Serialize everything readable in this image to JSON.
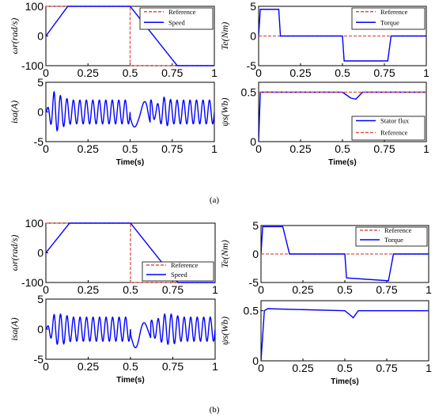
{
  "captions": [
    "(a)",
    "(b)"
  ],
  "colors": {
    "reference": "#d9534f",
    "signal": "#0000ff",
    "axes": "#000000"
  },
  "chart_data": [
    {
      "type": "line",
      "id": "a-speed",
      "ylabel": "ωr(rad/s)",
      "xlabel": "",
      "xlim": [
        0,
        1
      ],
      "ylim": [
        -100,
        100
      ],
      "xticks": [
        "0",
        "0.25",
        "0.5",
        "0.75",
        "1"
      ],
      "yticks": [
        "100",
        "0",
        "-100"
      ],
      "legend": {
        "position": "top-right",
        "entries": [
          "Reference",
          "Speed"
        ]
      },
      "series": [
        {
          "name": "Reference",
          "x": [
            0,
            0.5,
            0.5,
            1
          ],
          "y": [
            100,
            100,
            -100,
            -100
          ]
        },
        {
          "name": "Speed",
          "x": [
            0,
            0.13,
            0.5,
            0.78,
            1
          ],
          "y": [
            0,
            100,
            100,
            -100,
            -100
          ]
        }
      ]
    },
    {
      "type": "line",
      "id": "a-current",
      "ylabel": "isa(A)",
      "xlabel": "Time(s)",
      "xlim": [
        0,
        1
      ],
      "ylim": [
        -5,
        5
      ],
      "xticks": [
        "0",
        "0.25",
        "0.5",
        "0.75",
        "1"
      ],
      "yticks": [
        "5",
        "0",
        "-5"
      ],
      "series": [
        {
          "name": "",
          "x": [
            0,
            0.05,
            0.1,
            0.15,
            0.2,
            0.25,
            0.3,
            0.35,
            0.4,
            0.45,
            0.5,
            0.55,
            0.6,
            0.65,
            0.7,
            0.75,
            0.8,
            0.85,
            0.9,
            0.95,
            1
          ],
          "y": [
            0,
            3.5,
            2.5,
            2,
            2,
            2,
            2,
            2,
            2,
            2,
            2,
            1.5,
            3,
            1,
            2.5,
            2,
            2,
            2,
            2,
            2,
            2
          ]
        }
      ]
    },
    {
      "type": "line",
      "id": "a-torque",
      "ylabel": "Te(Nm)",
      "xlabel": "",
      "xlim": [
        0,
        1
      ],
      "ylim": [
        -5,
        5
      ],
      "xticks": [
        "0",
        "0.25",
        "0.5",
        "0.75",
        "1"
      ],
      "yticks": [
        "5",
        "0",
        "-5"
      ],
      "legend": {
        "position": "top-right",
        "entries": [
          "Reference",
          "Torque"
        ]
      },
      "series": [
        {
          "name": "Reference",
          "x": [
            0,
            1
          ],
          "y": [
            0,
            0
          ]
        },
        {
          "name": "Torque",
          "x": [
            0,
            0.01,
            0.12,
            0.13,
            0.5,
            0.51,
            0.77,
            0.79,
            1
          ],
          "y": [
            0,
            4.5,
            4.5,
            0,
            0,
            -4.2,
            -4.2,
            0,
            0
          ]
        }
      ]
    },
    {
      "type": "line",
      "id": "a-flux",
      "ylabel": "ψs(Wb)",
      "xlabel": "Time(s)",
      "xlim": [
        0,
        1
      ],
      "ylim": [
        0,
        0.6
      ],
      "xticks": [
        "0",
        "0.25",
        "0.5",
        "0.75",
        "1"
      ],
      "yticks": [
        "0.5",
        "0"
      ],
      "legend": {
        "position": "bottom-right",
        "entries": [
          "Stator flux",
          "Reference"
        ]
      },
      "series": [
        {
          "name": "Stator flux",
          "x": [
            0,
            0.01,
            0.5,
            0.55,
            0.58,
            0.62,
            1
          ],
          "y": [
            0,
            0.5,
            0.5,
            0.44,
            0.43,
            0.5,
            0.5
          ]
        },
        {
          "name": "Reference",
          "x": [
            0,
            1
          ],
          "y": [
            0.5,
            0.5
          ]
        }
      ]
    },
    {
      "type": "line",
      "id": "b-speed",
      "ylabel": "ωr(rad/s)",
      "xlabel": "",
      "xlim": [
        0,
        1
      ],
      "ylim": [
        -100,
        100
      ],
      "xticks": [
        "0",
        "0.25",
        "0.5",
        "0.75",
        "1"
      ],
      "yticks": [
        "100",
        "0",
        "-100"
      ],
      "legend": {
        "position": "bottom-right",
        "entries": [
          "Reference",
          "Speed"
        ]
      },
      "series": [
        {
          "name": "Reference",
          "x": [
            0,
            0.5,
            0.5,
            1
          ],
          "y": [
            100,
            100,
            -100,
            -100
          ]
        },
        {
          "name": "Speed",
          "x": [
            0,
            0.14,
            0.5,
            0.78,
            1
          ],
          "y": [
            0,
            100,
            100,
            -100,
            -100
          ]
        }
      ]
    },
    {
      "type": "line",
      "id": "b-current",
      "ylabel": "isa(A)",
      "xlabel": "Time(s)",
      "xlim": [
        0,
        1
      ],
      "ylim": [
        -5,
        5
      ],
      "xticks": [
        "0",
        "0.25",
        "0.5",
        "0.75",
        "1"
      ],
      "yticks": [
        "5",
        "0",
        "-5"
      ],
      "series": [
        {
          "name": "",
          "x": [
            0,
            0.05,
            0.1,
            0.15,
            0.2,
            0.25,
            0.3,
            0.35,
            0.4,
            0.45,
            0.5,
            0.55,
            0.6,
            0.65,
            0.7,
            0.75,
            0.8,
            0.85,
            0.9,
            0.95,
            1
          ],
          "y": [
            0,
            2.5,
            2.5,
            2,
            2,
            2,
            2,
            2,
            2,
            2,
            2,
            2.5,
            1.5,
            1.5,
            2.5,
            2.5,
            2,
            2,
            2,
            2,
            2
          ]
        }
      ]
    },
    {
      "type": "line",
      "id": "b-torque",
      "ylabel": "Te(Nm)",
      "xlabel": "",
      "xlim": [
        0,
        1
      ],
      "ylim": [
        -5,
        5
      ],
      "xticks": [
        "0",
        "0.25",
        "0.5",
        "0.75",
        "1"
      ],
      "yticks": [
        "5",
        "0",
        "-5"
      ],
      "legend": {
        "position": "top-right",
        "entries": [
          "Reference",
          "Torque"
        ]
      },
      "series": [
        {
          "name": "Reference",
          "x": [
            0,
            1
          ],
          "y": [
            0,
            0
          ]
        },
        {
          "name": "Torque",
          "x": [
            0,
            0.01,
            0.13,
            0.17,
            0.5,
            0.51,
            0.76,
            0.79,
            1
          ],
          "y": [
            0,
            4.8,
            4.8,
            0,
            0,
            -4.2,
            -4.7,
            0,
            0
          ]
        }
      ]
    },
    {
      "type": "line",
      "id": "b-flux",
      "ylabel": "ψs(Wb)",
      "xlabel": "Time(s)",
      "xlim": [
        0,
        1
      ],
      "ylim": [
        0,
        0.6
      ],
      "xticks": [
        "0",
        "0.25",
        "0.5",
        "0.75",
        "1"
      ],
      "yticks": [
        "0.5",
        "0"
      ],
      "series": [
        {
          "name": "",
          "x": [
            0,
            0.02,
            0.04,
            0.5,
            0.53,
            0.55,
            0.58,
            1
          ],
          "y": [
            0,
            0.5,
            0.52,
            0.5,
            0.46,
            0.43,
            0.5,
            0.5
          ]
        }
      ]
    }
  ]
}
